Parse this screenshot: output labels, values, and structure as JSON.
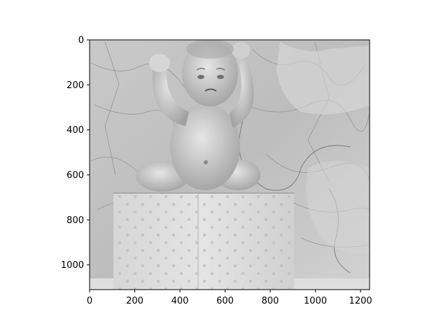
{
  "chart_data": {
    "type": "image",
    "title": "",
    "xlabel": "",
    "ylabel": "",
    "image_description_icon": "grayscale-photo-baby-doll-on-box-before-map",
    "colormap": "gray",
    "xlim": [
      0,
      1240
    ],
    "ylim": [
      1110,
      0
    ],
    "xticks": [
      0,
      200,
      400,
      600,
      800,
      1000,
      1200
    ],
    "yticks": [
      0,
      200,
      400,
      600,
      800,
      1000
    ],
    "grid": false,
    "y_inverted": true
  }
}
